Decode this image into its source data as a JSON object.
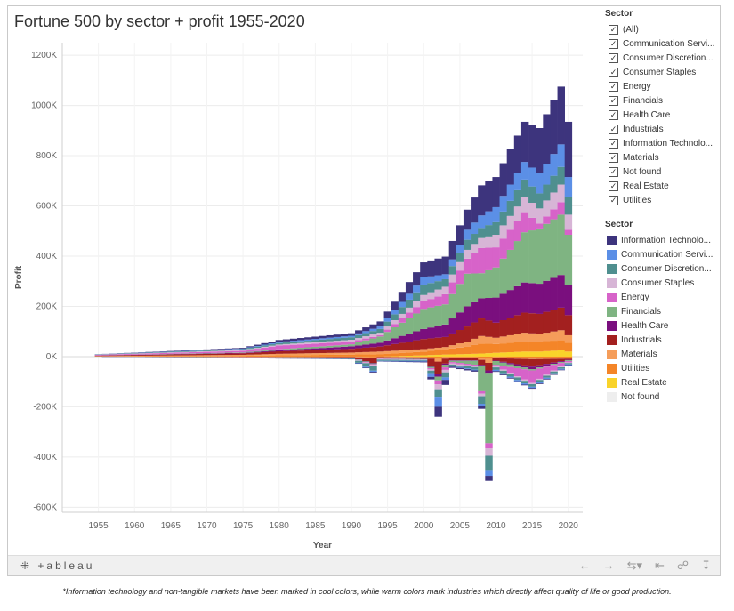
{
  "title": "Fortune 500 by sector + profit 1955-2020",
  "filter": {
    "title": "Sector",
    "items": [
      "(All)",
      "Communication Servi...",
      "Consumer Discretion...",
      "Consumer Staples",
      "Energy",
      "Financials",
      "Health Care",
      "Industrials",
      "Information Technolo...",
      "Materials",
      "Not found",
      "Real Estate",
      "Utilities"
    ]
  },
  "legend": {
    "title": "Sector",
    "items": [
      {
        "label": "Information Technolo...",
        "color": "#3d347d"
      },
      {
        "label": "Communication Servi...",
        "color": "#5b8fe6"
      },
      {
        "label": "Consumer Discretion...",
        "color": "#4f8f8f"
      },
      {
        "label": "Consumer Staples",
        "color": "#d7b5d6"
      },
      {
        "label": "Energy",
        "color": "#d763c9"
      },
      {
        "label": "Financials",
        "color": "#7fb482"
      },
      {
        "label": "Health Care",
        "color": "#7a0f7e"
      },
      {
        "label": "Industrials",
        "color": "#a3201f"
      },
      {
        "label": "Materials",
        "color": "#f59d5a"
      },
      {
        "label": "Utilities",
        "color": "#f48528"
      },
      {
        "label": "Real Estate",
        "color": "#f9d32a"
      },
      {
        "label": "Not found",
        "color": "#eeeeee"
      }
    ]
  },
  "toolbar": {
    "logo": "+ableau",
    "logo_mark": "⁜"
  },
  "footnote": "*Information technology and non-tangible markets have been marked in cool colors, while warm colors mark industries which directly affect quality of life or good production.",
  "chart_data": {
    "type": "bar",
    "title": "Fortune 500 by sector + profit 1955-2020",
    "xlabel": "Year",
    "ylabel": "Profit",
    "xlim": [
      1950,
      2022
    ],
    "ylim": [
      -620000,
      1250000
    ],
    "x_ticks": [
      1955,
      1960,
      1965,
      1970,
      1975,
      1980,
      1985,
      1990,
      1995,
      2000,
      2005,
      2010,
      2015,
      2020
    ],
    "y_ticks": [
      -600000,
      -400000,
      -200000,
      0,
      200000,
      400000,
      600000,
      800000,
      1000000,
      1200000
    ],
    "y_tick_labels": [
      "-600K",
      "-400K",
      "-200K",
      "0K",
      "200K",
      "400K",
      "600K",
      "800K",
      "1000K",
      "1200K"
    ],
    "grid": true,
    "stack_order": [
      "Not found",
      "Real Estate",
      "Utilities",
      "Materials",
      "Industrials",
      "Health Care",
      "Financials",
      "Energy",
      "Consumer Staples",
      "Consumer Discretion...",
      "Communication Servi...",
      "Information Technolo..."
    ],
    "positive_anchors": {
      "years": [
        1955,
        1975,
        1980,
        1990,
        1994,
        2000,
        2003,
        2006,
        2008,
        2010,
        2014,
        2016,
        2019,
        2020
      ],
      "Not found": [
        0,
        0,
        0,
        0,
        0,
        0,
        0,
        0,
        0,
        0,
        0,
        0,
        0,
        0
      ],
      "Real Estate": [
        0,
        0,
        0,
        0,
        0,
        5000,
        8000,
        10000,
        12000,
        15000,
        20000,
        20000,
        25000,
        20000
      ],
      "Utilities": [
        500,
        3000,
        5000,
        8000,
        10000,
        15000,
        20000,
        30000,
        40000,
        35000,
        40000,
        40000,
        40000,
        35000
      ],
      "Materials": [
        1500,
        4000,
        6000,
        8000,
        10000,
        10000,
        10000,
        20000,
        30000,
        25000,
        35000,
        30000,
        40000,
        30000
      ],
      "Industrials": [
        2000,
        6000,
        10000,
        15000,
        20000,
        40000,
        40000,
        60000,
        70000,
        60000,
        80000,
        80000,
        90000,
        80000
      ],
      "Health Care": [
        200,
        2000,
        4000,
        10000,
        15000,
        40000,
        50000,
        80000,
        80000,
        100000,
        120000,
        120000,
        130000,
        120000
      ],
      "Financials": [
        300,
        2000,
        4000,
        8000,
        25000,
        80000,
        80000,
        130000,
        100000,
        120000,
        200000,
        220000,
        240000,
        200000
      ],
      "Energy": [
        2500,
        6000,
        15000,
        10000,
        5000,
        30000,
        40000,
        60000,
        100000,
        80000,
        80000,
        20000,
        50000,
        20000
      ],
      "Consumer Staples": [
        500,
        3000,
        4000,
        8000,
        10000,
        25000,
        30000,
        35000,
        40000,
        50000,
        60000,
        60000,
        70000,
        60000
      ],
      "Consumer Discretion...": [
        1000,
        4000,
        6000,
        10000,
        15000,
        40000,
        30000,
        40000,
        40000,
        50000,
        70000,
        60000,
        70000,
        70000
      ],
      "Communication Servi...": [
        500,
        2000,
        4000,
        6000,
        10000,
        30000,
        20000,
        40000,
        50000,
        60000,
        70000,
        80000,
        90000,
        80000
      ],
      "Information Technolo...": [
        500,
        3000,
        8000,
        10000,
        20000,
        60000,
        70000,
        80000,
        120000,
        120000,
        160000,
        180000,
        230000,
        220000
      ]
    },
    "negative_anchors": {
      "years": [
        1955,
        1990,
        1993,
        1994,
        2000,
        2001,
        2002,
        2003,
        2004,
        2007,
        2008,
        2009,
        2010,
        2015,
        2020
      ],
      "Not found": [
        0,
        0,
        0,
        0,
        0,
        0,
        0,
        0,
        0,
        0,
        0,
        0,
        0,
        0,
        0
      ],
      "Real Estate": [
        0,
        0,
        0,
        0,
        0,
        0,
        0,
        0,
        0,
        0,
        0,
        0,
        0,
        0,
        0
      ],
      "Utilities": [
        0,
        -1000,
        -2000,
        -1000,
        -2000,
        -5000,
        -10000,
        -3000,
        -2000,
        -2000,
        -5000,
        -10000,
        -3000,
        -5000,
        -5000
      ],
      "Materials": [
        0,
        -1000,
        -3000,
        -1000,
        -2000,
        -3000,
        -10000,
        -5000,
        -3000,
        -3000,
        -8000,
        -15000,
        -3000,
        -5000,
        -3000
      ],
      "Industrials": [
        0,
        -2000,
        -20000,
        -5000,
        -5000,
        -30000,
        -50000,
        -20000,
        -10000,
        -10000,
        -20000,
        -30000,
        -10000,
        -30000,
        -5000
      ],
      "Health Care": [
        0,
        0,
        -2000,
        0,
        -1000,
        -3000,
        -10000,
        -5000,
        -2000,
        -2000,
        -5000,
        -10000,
        -2000,
        -10000,
        -2000
      ],
      "Financials": [
        0,
        -1000,
        -3000,
        -1000,
        -2000,
        -5000,
        -15000,
        -10000,
        -5000,
        -15000,
        -100000,
        -280000,
        -15000,
        -5000,
        -3000
      ],
      "Energy": [
        0,
        -1000,
        -3000,
        -2000,
        -1000,
        -5000,
        -15000,
        -10000,
        -5000,
        -5000,
        -10000,
        -20000,
        -5000,
        -50000,
        -5000
      ],
      "Consumer Staples": [
        0,
        -1000,
        -3000,
        -2000,
        -1000,
        -5000,
        -20000,
        -10000,
        -5000,
        -5000,
        -10000,
        -30000,
        -5000,
        -5000,
        -3000
      ],
      "Consumer Discretion...": [
        0,
        -2000,
        -20000,
        -5000,
        -3000,
        -10000,
        -30000,
        -20000,
        -5000,
        -10000,
        -30000,
        -60000,
        -10000,
        -10000,
        -5000
      ],
      "Communication Servi...": [
        0,
        -1000,
        -5000,
        -2000,
        -3000,
        -15000,
        -40000,
        -10000,
        -3000,
        -3000,
        -10000,
        -20000,
        -5000,
        -5000,
        -3000
      ],
      "Information Technolo...": [
        0,
        -1000,
        -3000,
        -1000,
        -3000,
        -10000,
        -40000,
        -20000,
        -5000,
        -5000,
        -10000,
        -20000,
        -3000,
        -3000,
        -2000
      ]
    }
  }
}
